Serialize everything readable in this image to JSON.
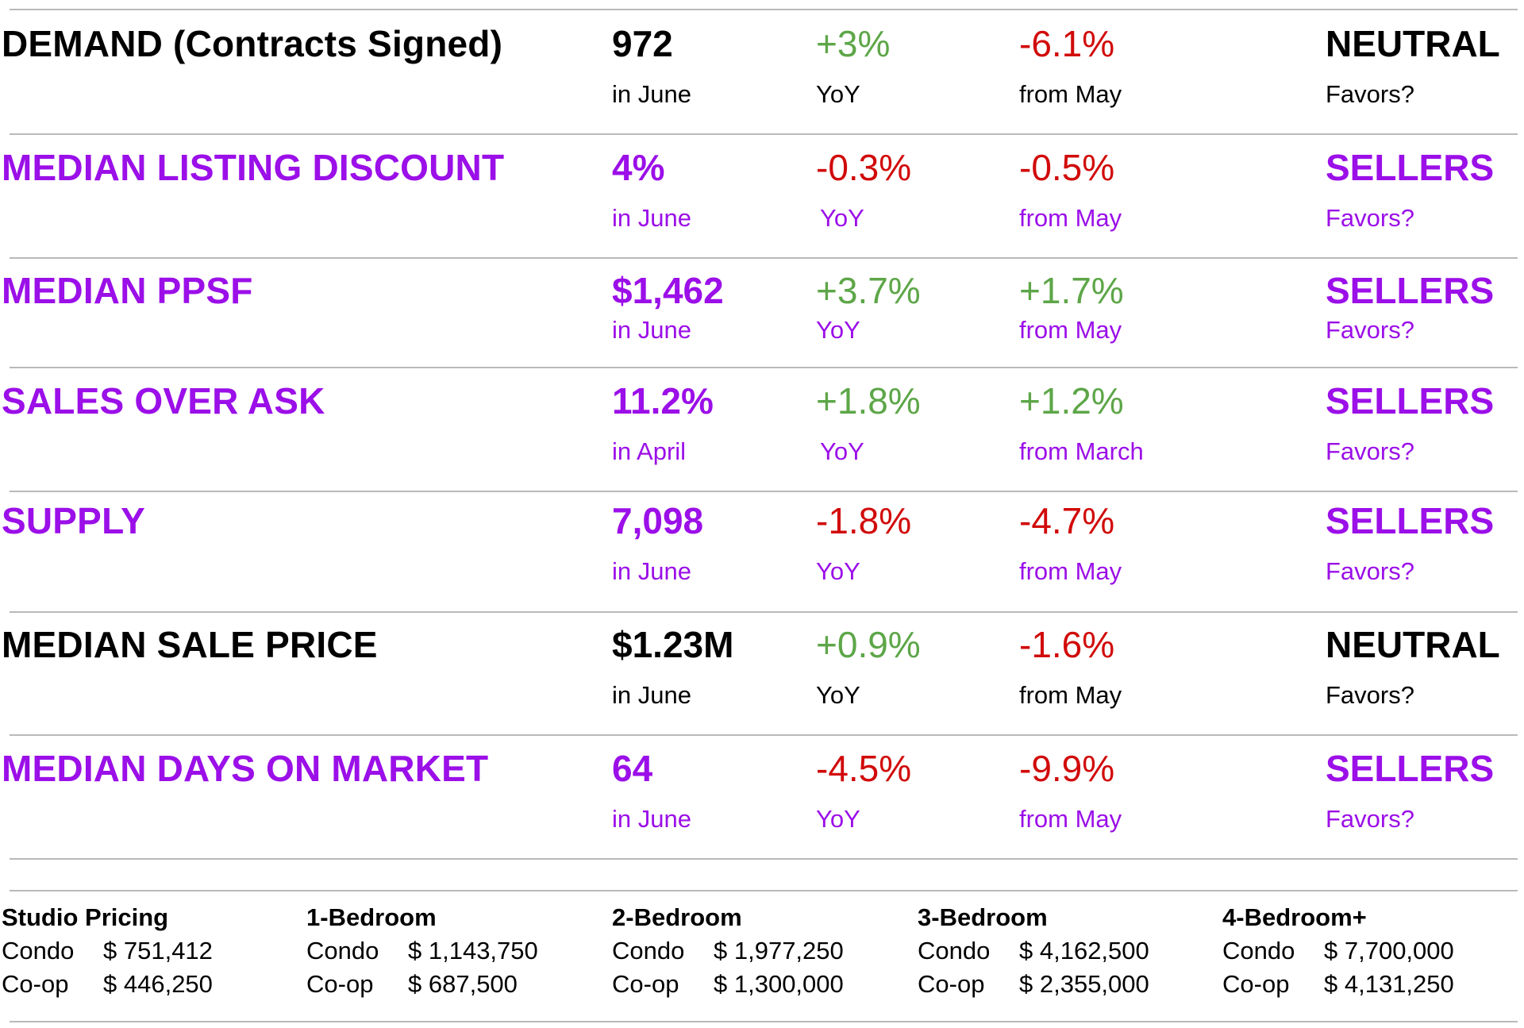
{
  "colors": {
    "purple": "#9b0fe8",
    "black": "#000000",
    "positive": "#5da648",
    "negative": "#d10a0a",
    "rule": "#b9b9b9"
  },
  "metrics": [
    {
      "label": "DEMAND (Contracts Signed)",
      "value": "972",
      "period": "in June",
      "yoy": "+3%",
      "yoy_label": "YoY",
      "mom": "-6.1%",
      "mom_label": "from May",
      "favors": "NEUTRAL",
      "favors_label": "Favors?"
    },
    {
      "label": "MEDIAN LISTING DISCOUNT",
      "value": "4%",
      "period": "in June",
      "yoy": "-0.3%",
      "yoy_label": "YoY",
      "mom": "-0.5%",
      "mom_label": "from May",
      "favors": "SELLERS",
      "favors_label": "Favors?"
    },
    {
      "label": "MEDIAN PPSF",
      "value": "$1,462",
      "period": "in June",
      "yoy": "+3.7%",
      "yoy_label": "YoY",
      "mom": "+1.7%",
      "mom_label": "from May",
      "favors": "SELLERS",
      "favors_label": "Favors?"
    },
    {
      "label": "SALES OVER ASK",
      "value": "11.2%",
      "period": "in April",
      "yoy": "+1.8%",
      "yoy_label": "YoY",
      "mom": "+1.2%",
      "mom_label": "from March",
      "favors": "SELLERS",
      "favors_label": "Favors?"
    },
    {
      "label": "SUPPLY",
      "value": "7,098",
      "period": "in June",
      "yoy": "-1.8%",
      "yoy_label": "YoY",
      "mom": "-4.7%",
      "mom_label": "from May",
      "favors": "SELLERS",
      "favors_label": "Favors?"
    },
    {
      "label": "MEDIAN SALE PRICE",
      "value": "$1.23M",
      "period": "in June",
      "yoy": "+0.9%",
      "yoy_label": "YoY",
      "mom": "-1.6%",
      "mom_label": "from May",
      "favors": "NEUTRAL",
      "favors_label": "Favors?"
    },
    {
      "label": "MEDIAN DAYS ON MARKET",
      "value": "64",
      "period": "in June",
      "yoy": "-4.5%",
      "yoy_label": "YoY",
      "mom": "-9.9%",
      "mom_label": "from May",
      "favors": "SELLERS",
      "favors_label": "Favors?"
    }
  ],
  "pricing": [
    {
      "title": "Studio Pricing",
      "condo_label": "Condo",
      "condo_value": "$ 751,412",
      "coop_label": "Co-op",
      "coop_value": "$ 446,250"
    },
    {
      "title": "1-Bedroom",
      "condo_label": "Condo",
      "condo_value": "$ 1,143,750",
      "coop_label": "Co-op",
      "coop_value": "$ 687,500"
    },
    {
      "title": "2-Bedroom",
      "condo_label": "Condo",
      "condo_value": "$ 1,977,250",
      "coop_label": "Co-op",
      "coop_value": "$ 1,300,000"
    },
    {
      "title": "3-Bedroom",
      "condo_label": "Condo",
      "condo_value": "$ 4,162,500",
      "coop_label": "Co-op",
      "coop_value": "$ 2,355,000"
    },
    {
      "title": "4-Bedroom+",
      "condo_label": "Condo",
      "condo_value": "$ 7,700,000",
      "coop_label": "Co-op",
      "coop_value": "$ 4,131,250"
    }
  ]
}
